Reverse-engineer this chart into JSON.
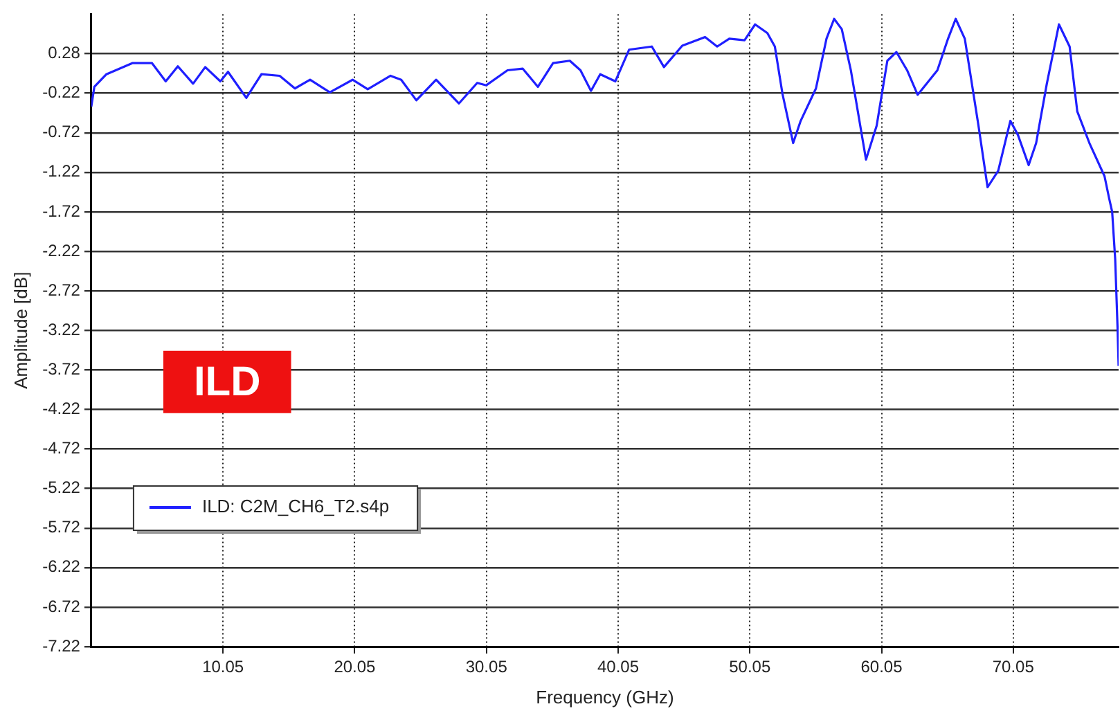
{
  "chart_data": {
    "type": "line",
    "xlabel": "Frequency (GHz)",
    "ylabel": "Amplitude [dB]",
    "annotations": [
      "ILD"
    ],
    "xlim": [
      0.05,
      78.05
    ],
    "ylim": [
      -7.22,
      0.78
    ],
    "xticks": [
      10.05,
      20.05,
      30.05,
      40.05,
      50.05,
      60.05,
      70.05
    ],
    "yticks": [
      0.28,
      -0.22,
      -0.72,
      -1.22,
      -1.72,
      -2.22,
      -2.72,
      -3.22,
      -3.72,
      -4.22,
      -4.72,
      -5.22,
      -5.72,
      -6.22,
      -6.72,
      -7.22
    ],
    "grid": true,
    "legend": "left",
    "marker": "none",
    "line_style": "solid",
    "series": [
      {
        "name": "ILD: C2M_CH6_T2.s4p",
        "color": "#1f1fff",
        "x": [
          0.05,
          0.28,
          1.2,
          3.16,
          4.66,
          5.7,
          6.62,
          7.78,
          8.7,
          9.85,
          10.43,
          11.82,
          12.97,
          14.35,
          15.51,
          16.66,
          18.16,
          19.89,
          21.04,
          22.77,
          23.58,
          24.73,
          26.23,
          27.96,
          29.35,
          30.04,
          31.65,
          32.81,
          33.96,
          35.11,
          36.38,
          37.19,
          37.99,
          38.69,
          39.84,
          40.88,
          42.61,
          43.53,
          44.92,
          46.65,
          47.57,
          48.49,
          49.65,
          50.45,
          51.38,
          51.95,
          52.53,
          53.34,
          53.91,
          55.07,
          55.87,
          56.45,
          57.03,
          57.72,
          58.87,
          59.68,
          60.49,
          61.18,
          61.99,
          62.79,
          64.29,
          65.1,
          65.68,
          66.37,
          67.41,
          68.1,
          68.91,
          69.83,
          70.41,
          71.22,
          71.79,
          72.6,
          73.52,
          74.33,
          74.91,
          75.83,
          76.98,
          77.33,
          77.56,
          77.79,
          77.97,
          78.05
        ],
        "values": [
          -0.39,
          -0.14,
          0.02,
          0.16,
          0.16,
          -0.07,
          0.12,
          -0.1,
          0.11,
          -0.07,
          0.05,
          -0.28,
          0.02,
          0,
          -0.16,
          -0.05,
          -0.21,
          -0.05,
          -0.17,
          0,
          -0.05,
          -0.31,
          -0.05,
          -0.35,
          -0.09,
          -0.12,
          0.07,
          0.09,
          -0.14,
          0.16,
          0.19,
          0.07,
          -0.19,
          0.02,
          -0.07,
          0.33,
          0.37,
          0.11,
          0.38,
          0.49,
          0.37,
          0.47,
          0.45,
          0.65,
          0.54,
          0.37,
          -0.23,
          -0.85,
          -0.57,
          -0.16,
          0.47,
          0.72,
          0.59,
          0.07,
          -1.06,
          -0.63,
          0.19,
          0.3,
          0.07,
          -0.24,
          0.07,
          0.47,
          0.72,
          0.47,
          -0.63,
          -1.41,
          -1.2,
          -0.57,
          -0.75,
          -1.13,
          -0.85,
          -0.1,
          0.65,
          0.37,
          -0.45,
          -0.85,
          -1.27,
          -1.55,
          -1.72,
          -2.32,
          -3.19,
          -3.67
        ]
      }
    ]
  }
}
